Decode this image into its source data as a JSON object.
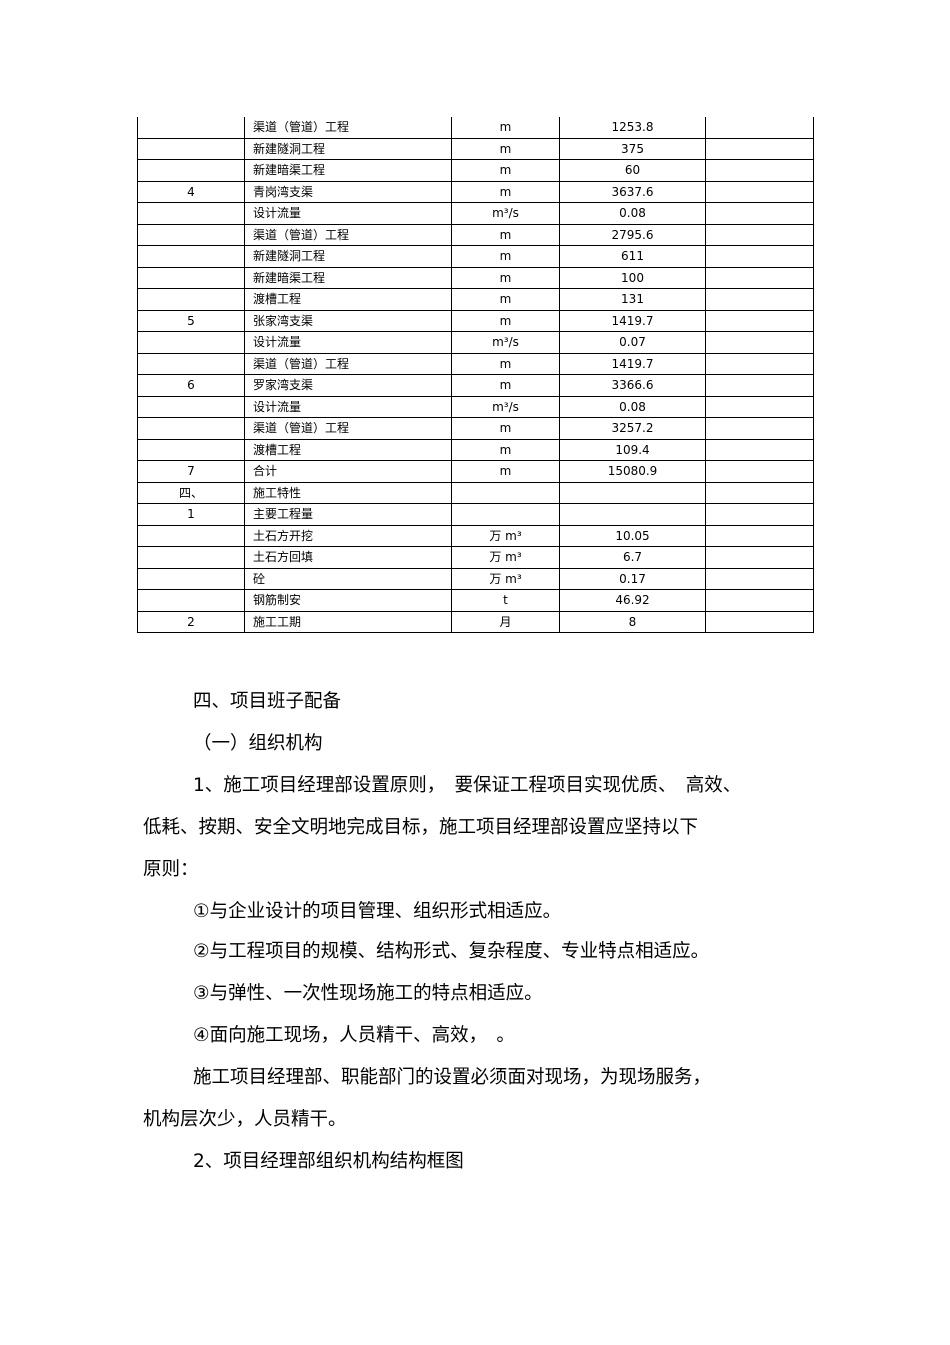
{
  "table": {
    "rows": [
      [
        "",
        "渠道（管道）工程",
        "m",
        "1253.8",
        ""
      ],
      [
        "",
        "新建隧洞工程",
        "m",
        "375",
        ""
      ],
      [
        "",
        "新建暗渠工程",
        "m",
        "60",
        ""
      ],
      [
        "4",
        "青岗湾支渠",
        "m",
        "3637.6",
        ""
      ],
      [
        "",
        "设计流量",
        "m³/s",
        "0.08",
        ""
      ],
      [
        "",
        "渠道（管道）工程",
        "m",
        "2795.6",
        ""
      ],
      [
        "",
        "新建隧洞工程",
        "m",
        "611",
        ""
      ],
      [
        "",
        "新建暗渠工程",
        "m",
        "100",
        ""
      ],
      [
        "",
        "渡槽工程",
        "m",
        "131",
        ""
      ],
      [
        "5",
        "张家湾支渠",
        "m",
        "1419.7",
        ""
      ],
      [
        "",
        "设计流量",
        "m³/s",
        "0.07",
        ""
      ],
      [
        "",
        "渠道（管道）工程",
        "m",
        "1419.7",
        ""
      ],
      [
        "6",
        "罗家湾支渠",
        "m",
        "3366.6",
        ""
      ],
      [
        "",
        "设计流量",
        "m³/s",
        "0.08",
        ""
      ],
      [
        "",
        "渠道（管道）工程",
        "m",
        "3257.2",
        ""
      ],
      [
        "",
        "渡槽工程",
        "m",
        "109.4",
        ""
      ],
      [
        "7",
        "合计",
        "m",
        "15080.9",
        ""
      ],
      [
        "四、",
        "施工特性",
        "",
        "",
        ""
      ],
      [
        "1",
        "主要工程量",
        "",
        "",
        ""
      ],
      [
        "",
        "土石方开挖",
        "万 m³",
        "10.05",
        ""
      ],
      [
        "",
        "土石方回填",
        "万 m³",
        "6.7",
        ""
      ],
      [
        "",
        "砼",
        "万 m³",
        "0.17",
        ""
      ],
      [
        "",
        "钢筋制安",
        "t",
        "46.92",
        ""
      ],
      [
        "2",
        "施工工期",
        "月",
        "8",
        ""
      ]
    ]
  },
  "body": {
    "heading": "四、项目班子配备",
    "subheading": "（一）组织机构",
    "p1_line1": "1、施工项目经理部设置原则，　要保证工程项目实现优质、　高效、",
    "p1_line2": "低耗、按期、安全文明地完成目标，施工项目经理部设置应坚持以下",
    "p1_line3": "原则：",
    "item1": "①与企业设计的项目管理、组织形式相适应。",
    "item2": "②与工程项目的规模、结构形式、复杂程度、专业特点相适应。",
    "item3": "③与弹性、一次性现场施工的特点相适应。",
    "item4": "④面向施工现场，人员精干、高效，　。",
    "p2_line1": "施工项目经理部、职能部门的设置必须面对现场，为现场服务，",
    "p2_line2": "机构层次少，人员精干。",
    "p3": "2、项目经理部组织机构结构框图"
  }
}
